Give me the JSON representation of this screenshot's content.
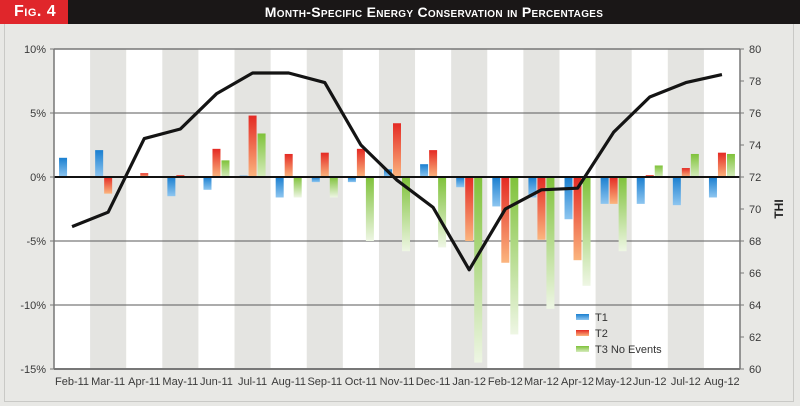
{
  "header": {
    "fig_label": "Fig. 4",
    "title": "Month-Specific Energy Conservation in Percentages"
  },
  "colors": {
    "header_bg": "#1a1717",
    "fig_tag_bg": "#e0262b",
    "t1": "#1a7fd0",
    "t2": "#e42a24",
    "t3": "#7fc23a",
    "thi_line": "#141414",
    "band": "#e4e4e1",
    "plot_bg": "#ffffff"
  },
  "chart_data": {
    "type": "bar",
    "title": "Month-Specific Energy Conservation in Percentages",
    "categories": [
      "Feb-11",
      "Mar-11",
      "Apr-11",
      "May-11",
      "Jun-11",
      "Jul-11",
      "Aug-11",
      "Sep-11",
      "Oct-11",
      "Nov-11",
      "Dec-11",
      "Jan-12",
      "Feb-12",
      "Mar-12",
      "Apr-12",
      "May-12",
      "Jun-12",
      "Jul-12",
      "Aug-12"
    ],
    "series": [
      {
        "name": "T1",
        "axis": "left",
        "values": [
          1.5,
          2.1,
          0,
          -1.5,
          -1.0,
          0.1,
          -1.6,
          -0.4,
          -0.4,
          0.6,
          1.0,
          -0.8,
          -2.3,
          -1.6,
          -3.3,
          -2.1,
          -2.1,
          -2.2,
          -1.6
        ]
      },
      {
        "name": "T2",
        "axis": "left",
        "values": [
          0,
          -1.3,
          0.3,
          0.15,
          2.2,
          4.8,
          1.8,
          1.9,
          2.2,
          4.2,
          2.1,
          -5.0,
          -6.7,
          -4.9,
          -6.5,
          -2.1,
          0.15,
          0.7,
          1.9
        ]
      },
      {
        "name": "T3 No Events",
        "axis": "left",
        "values": [
          0,
          0,
          0,
          0,
          1.3,
          3.4,
          -1.6,
          -1.6,
          -5.0,
          -5.8,
          -5.5,
          -14.5,
          -12.3,
          -10.3,
          -8.5,
          -5.8,
          0.9,
          1.8,
          1.8
        ]
      },
      {
        "name": "THI",
        "axis": "right",
        "type": "line",
        "values": [
          68.9,
          69.8,
          74.4,
          75.0,
          77.2,
          78.5,
          78.5,
          77.9,
          74.0,
          71.8,
          70.1,
          66.2,
          70.0,
          71.2,
          71.3,
          74.8,
          77.0,
          77.9,
          78.4
        ]
      }
    ],
    "y_left": {
      "label": "",
      "ylim": [
        -15,
        10
      ],
      "ticks": [
        "10%",
        "5%",
        "0%",
        "-5%",
        "-10%",
        "-15%"
      ],
      "tick_values": [
        10,
        5,
        0,
        -5,
        -10,
        -15
      ]
    },
    "y_right": {
      "label": "THI",
      "ylim": [
        60,
        80
      ],
      "ticks": [
        "80",
        "78",
        "76",
        "74",
        "72",
        "70",
        "68",
        "66",
        "64",
        "62",
        "60"
      ],
      "tick_values": [
        80,
        78,
        76,
        74,
        72,
        70,
        68,
        66,
        64,
        62,
        60
      ]
    },
    "xlabel": "",
    "grid": true,
    "legend": {
      "position": "bottom-right",
      "entries": [
        "T1",
        "T2",
        "T3 No Events"
      ]
    }
  }
}
